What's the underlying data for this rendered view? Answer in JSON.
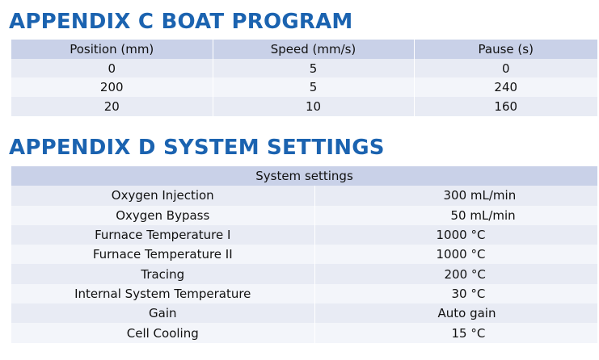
{
  "appendix_c": {
    "title": "APPENDIX C BOAT PROGRAM",
    "headers": [
      "Position (mm)",
      "Speed (mm/s)",
      "Pause (s)"
    ],
    "rows": [
      [
        "0",
        "5",
        "0"
      ],
      [
        "200",
        "5",
        "240"
      ],
      [
        "20",
        "10",
        "160"
      ]
    ]
  },
  "appendix_d": {
    "title": "APPENDIX D SYSTEM SETTINGS",
    "header": "System settings",
    "rows": [
      {
        "label": "Oxygen Injection",
        "value": "300 mL/min"
      },
      {
        "label": "Oxygen Bypass",
        "value": "50 mL/min"
      },
      {
        "label": "Furnace Temperature I",
        "value": "1000 °C"
      },
      {
        "label": "Furnace Temperature II",
        "value": "1000 °C"
      },
      {
        "label": "Tracing",
        "value": "200 °C"
      },
      {
        "label": "Internal System Temperature",
        "value": "30 °C"
      },
      {
        "label": "Gain",
        "value": "Auto gain"
      },
      {
        "label": "Cell Cooling",
        "value": "15 °C"
      }
    ]
  }
}
